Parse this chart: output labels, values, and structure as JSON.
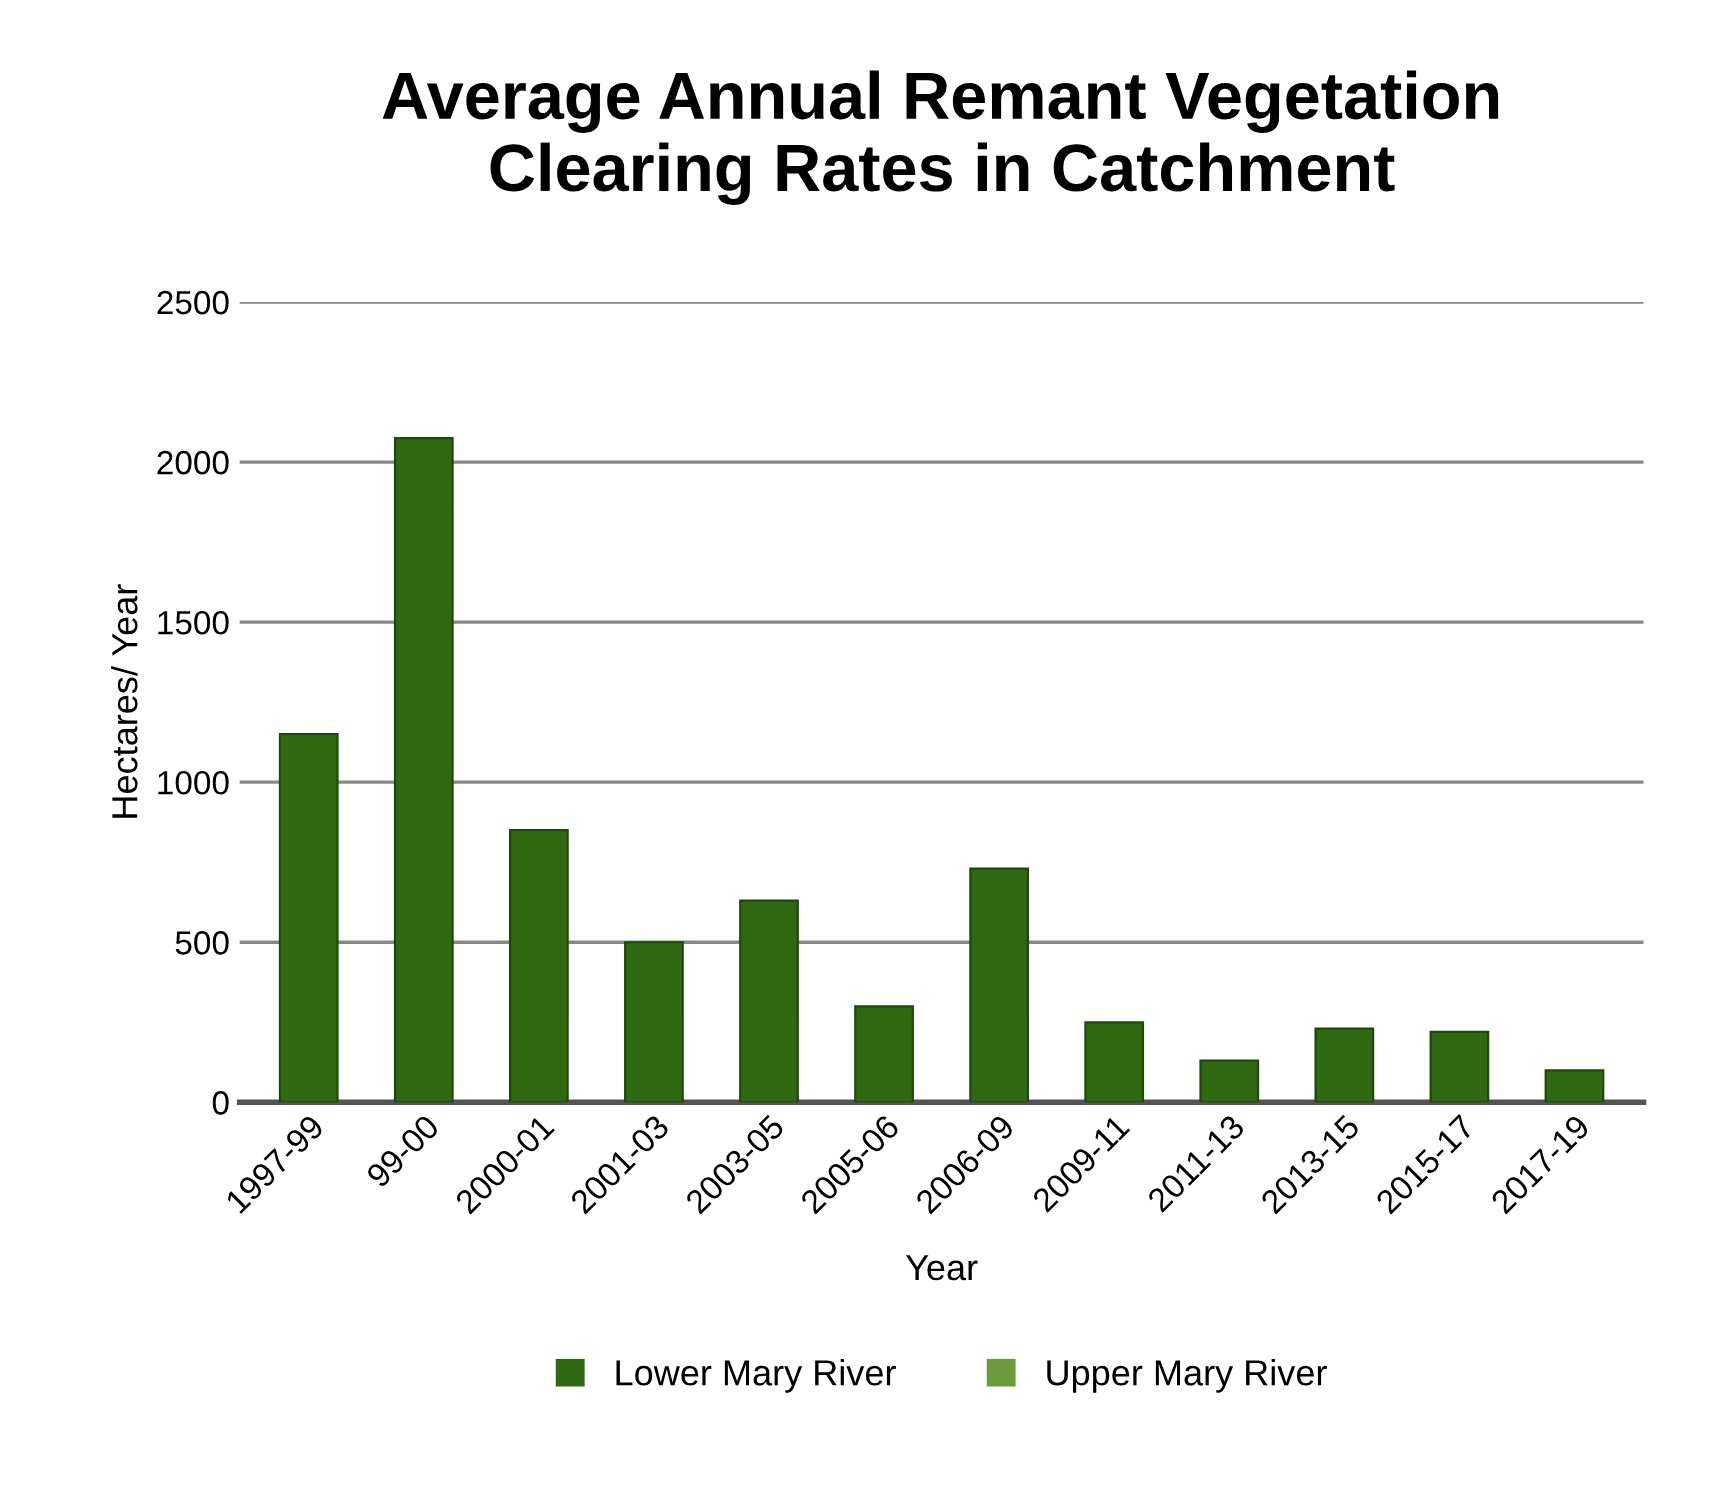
{
  "chart_data": {
    "type": "bar",
    "title": "Average Annual Remant Vegetation\nClearing Rates in Catchment",
    "xlabel": "Year",
    "ylabel": "Hectares/ Year",
    "categories": [
      "1997-99",
      "99-00",
      "2000-01",
      "2001-03",
      "2003-05",
      "2005-06",
      "2006-09",
      "2009-11",
      "2011-13",
      "2013-15",
      "2015-17",
      "2017-19"
    ],
    "series": [
      {
        "name": "Lower Mary River",
        "color": "#2f6a12",
        "values": [
          1150,
          2075,
          850,
          500,
          630,
          300,
          730,
          250,
          130,
          230,
          220,
          100
        ]
      },
      {
        "name": "Upper Mary River",
        "color": "#6b9a3c",
        "values": [
          null,
          null,
          null,
          null,
          null,
          null,
          null,
          null,
          null,
          null,
          null,
          null
        ]
      }
    ],
    "ylim": [
      0,
      2500
    ],
    "yticks": [
      0,
      500,
      1000,
      1500,
      2000,
      2500
    ],
    "grid": "y",
    "legend": "bottom"
  }
}
